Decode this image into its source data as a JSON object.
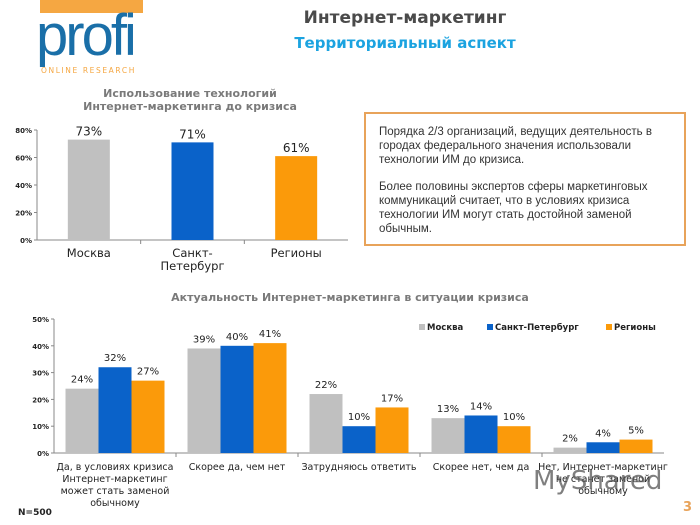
{
  "logo": {
    "brand": "profi",
    "tagline": "ONLINE RESEARCH"
  },
  "header": {
    "title": "Интернет-маркетинг",
    "subtitle": "Территориальный аспект"
  },
  "info_box": {
    "paragraphs": [
      "Порядка 2/3 организаций, ведущих деятельность в городах федерального значения использовали технологии ИМ до кризиса.",
      "Более половины экспертов сферы маркетинговых коммуникаций считает, что в условиях кризиса технологии ИМ могут стать достойной заменой обычным."
    ]
  },
  "colors": {
    "moscow": "#c0c0c0",
    "spb": "#0a62c9",
    "regions": "#fb9a0a",
    "accent": "#e8a35a",
    "title_blue": "#1ba3e0"
  },
  "footer": {
    "sample": "N=500",
    "page": "3",
    "watermark": "MyShared"
  },
  "chart_data": [
    {
      "type": "bar",
      "title": "Использование технологий Интернет-маркетинга до кризиса",
      "title_lines": [
        "Использование технологий",
        "Интернет-маркетинга до кризиса"
      ],
      "categories": [
        "Москва",
        "Санкт-Петербург",
        "Регионы"
      ],
      "category_lines": [
        [
          "Москва"
        ],
        [
          "Санкт-",
          "Петербург"
        ],
        [
          "Регионы"
        ]
      ],
      "values": [
        73,
        71,
        61
      ],
      "data_labels": [
        "73%",
        "71%",
        "61%"
      ],
      "bar_colors": [
        "#c0c0c0",
        "#0a62c9",
        "#fb9a0a"
      ],
      "ylim": [
        0,
        80
      ],
      "yticks": [
        0,
        20,
        40,
        60,
        80
      ],
      "ytick_labels": [
        "0%",
        "20%",
        "40%",
        "60%",
        "80%"
      ],
      "xlabel": "",
      "ylabel": "",
      "grid": false,
      "legend": "none"
    },
    {
      "type": "bar",
      "title": "Актуальность Интернет-маркетинга в ситуации кризиса",
      "categories": [
        "Да, в условиях кризиса Интернет-маркетинг может стать заменой обычному",
        "Скорее да, чем нет",
        "Затрудняюсь ответить",
        "Скорее нет, чем да",
        "Нет, Интернет-маркетинг не станет заменой обычному"
      ],
      "category_lines": [
        [
          "Да, в условиях кризиса",
          "Интернет-маркетинг",
          "может стать заменой",
          "обычному"
        ],
        [
          "Скорее да, чем нет"
        ],
        [
          "Затрудняюсь ответить"
        ],
        [
          "Скорее нет, чем да"
        ],
        [
          "Нет, Интернет-маркетинг",
          "не станет заменой",
          "обычному"
        ]
      ],
      "series": [
        {
          "name": "Москва",
          "color": "#c0c0c0",
          "values": [
            24,
            39,
            22,
            13,
            2
          ]
        },
        {
          "name": "Санкт-Петербург",
          "color": "#0a62c9",
          "values": [
            32,
            40,
            10,
            14,
            4
          ]
        },
        {
          "name": "Регионы",
          "color": "#fb9a0a",
          "values": [
            27,
            41,
            17,
            10,
            5
          ]
        }
      ],
      "ylim": [
        0,
        50
      ],
      "yticks": [
        0,
        10,
        20,
        30,
        40,
        50
      ],
      "ytick_labels": [
        "0%",
        "10%",
        "20%",
        "30%",
        "40%",
        "50%"
      ],
      "xlabel": "",
      "ylabel": "",
      "grid": false,
      "legend": "top-right"
    }
  ]
}
